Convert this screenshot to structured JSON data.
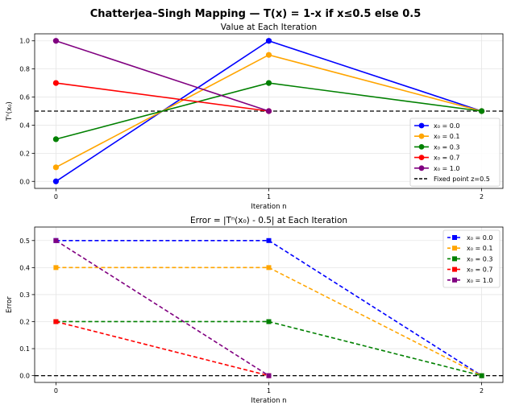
{
  "title": "Chatterjea–Singh Mapping — T(x) = 1-x if x≤0.5 else 0.5",
  "chart_data": [
    {
      "type": "line",
      "title": "Value at Each Iteration",
      "xlabel": "Iteration n",
      "ylabel": "Tⁿ(x₀)",
      "xlim": [
        -0.1,
        2.1
      ],
      "ylim": [
        -0.05,
        1.05
      ],
      "xticks": [
        "0",
        "1",
        "2"
      ],
      "yticks": [
        "0.0",
        "0.2",
        "0.4",
        "0.6",
        "0.8",
        "1.0"
      ],
      "grid": true,
      "legend_position": "lower-right",
      "x": [
        0,
        1,
        2
      ],
      "series": [
        {
          "name": "x₀ = 0.0",
          "color": "#0000ff",
          "marker": "circle",
          "linestyle": "solid",
          "x": [
            0,
            1,
            2
          ],
          "values": [
            0.0,
            1.0,
            0.5
          ]
        },
        {
          "name": "x₀ = 0.1",
          "color": "#ffa500",
          "marker": "circle",
          "linestyle": "solid",
          "x": [
            0,
            1,
            2
          ],
          "values": [
            0.1,
            0.9,
            0.5
          ]
        },
        {
          "name": "x₀ = 0.3",
          "color": "#008000",
          "marker": "circle",
          "linestyle": "solid",
          "x": [
            0,
            1,
            2
          ],
          "values": [
            0.3,
            0.7,
            0.5
          ]
        },
        {
          "name": "x₀ = 0.7",
          "color": "#ff0000",
          "marker": "circle",
          "linestyle": "solid",
          "x": [
            0,
            1
          ],
          "values": [
            0.7,
            0.5
          ]
        },
        {
          "name": "x₀ = 1.0",
          "color": "#800080",
          "marker": "circle",
          "linestyle": "solid",
          "x": [
            0,
            1
          ],
          "values": [
            1.0,
            0.5
          ]
        }
      ],
      "reference_line": {
        "name": "Fixed point z=0.5",
        "y": 0.5,
        "color": "#000000",
        "linestyle": "dashed"
      }
    },
    {
      "type": "line",
      "title": "Error = |Tⁿ(x₀) - 0.5| at Each Iteration",
      "xlabel": "Iteration n",
      "ylabel": "Error",
      "xlim": [
        -0.1,
        2.1
      ],
      "ylim": [
        -0.025,
        0.55
      ],
      "xticks": [
        "0",
        "1",
        "2"
      ],
      "yticks": [
        "0.0",
        "0.1",
        "0.2",
        "0.3",
        "0.4",
        "0.5"
      ],
      "grid": true,
      "legend_position": "upper-right",
      "x": [
        0,
        1,
        2
      ],
      "series": [
        {
          "name": "x₀ = 0.0",
          "color": "#0000ff",
          "marker": "square",
          "linestyle": "dashed",
          "x": [
            0,
            1,
            2
          ],
          "values": [
            0.5,
            0.5,
            0.0
          ]
        },
        {
          "name": "x₀ = 0.1",
          "color": "#ffa500",
          "marker": "square",
          "linestyle": "dashed",
          "x": [
            0,
            1,
            2
          ],
          "values": [
            0.4,
            0.4,
            0.0
          ]
        },
        {
          "name": "x₀ = 0.3",
          "color": "#008000",
          "marker": "square",
          "linestyle": "dashed",
          "x": [
            0,
            1,
            2
          ],
          "values": [
            0.2,
            0.2,
            0.0
          ]
        },
        {
          "name": "x₀ = 0.7",
          "color": "#ff0000",
          "marker": "square",
          "linestyle": "dashed",
          "x": [
            0,
            1
          ],
          "values": [
            0.2,
            0.0
          ]
        },
        {
          "name": "x₀ = 1.0",
          "color": "#800080",
          "marker": "square",
          "linestyle": "dashed",
          "x": [
            0,
            1
          ],
          "values": [
            0.5,
            0.0
          ]
        }
      ],
      "reference_line": {
        "y": 0.0,
        "color": "#000000",
        "linestyle": "dashed"
      }
    }
  ]
}
